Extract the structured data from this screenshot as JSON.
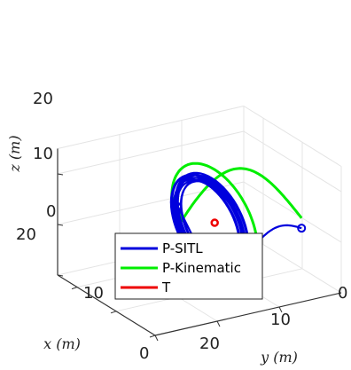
{
  "chart_data": {
    "type": "line",
    "projection": "3d",
    "xlabel": "x (m)",
    "ylabel": "y (m)",
    "zlabel": "z (m)",
    "xlim": [
      0,
      25
    ],
    "ylim": [
      0,
      30
    ],
    "zlim": [
      0,
      25
    ],
    "x_ticks": [
      "0",
      "10",
      "20"
    ],
    "y_ticks": [
      "0",
      "10",
      "20"
    ],
    "z_ticks": [
      "0",
      "10",
      "20"
    ],
    "grid": true,
    "legend_position": "bottom-center",
    "target_point": {
      "x": 7,
      "y": 14,
      "z": 15
    },
    "series": [
      {
        "name": "P-SITL",
        "color": "#0000dd"
      },
      {
        "name": "P-Kinematic",
        "color": "#00ee00"
      },
      {
        "name": "T",
        "color": "#ee0000"
      }
    ]
  }
}
